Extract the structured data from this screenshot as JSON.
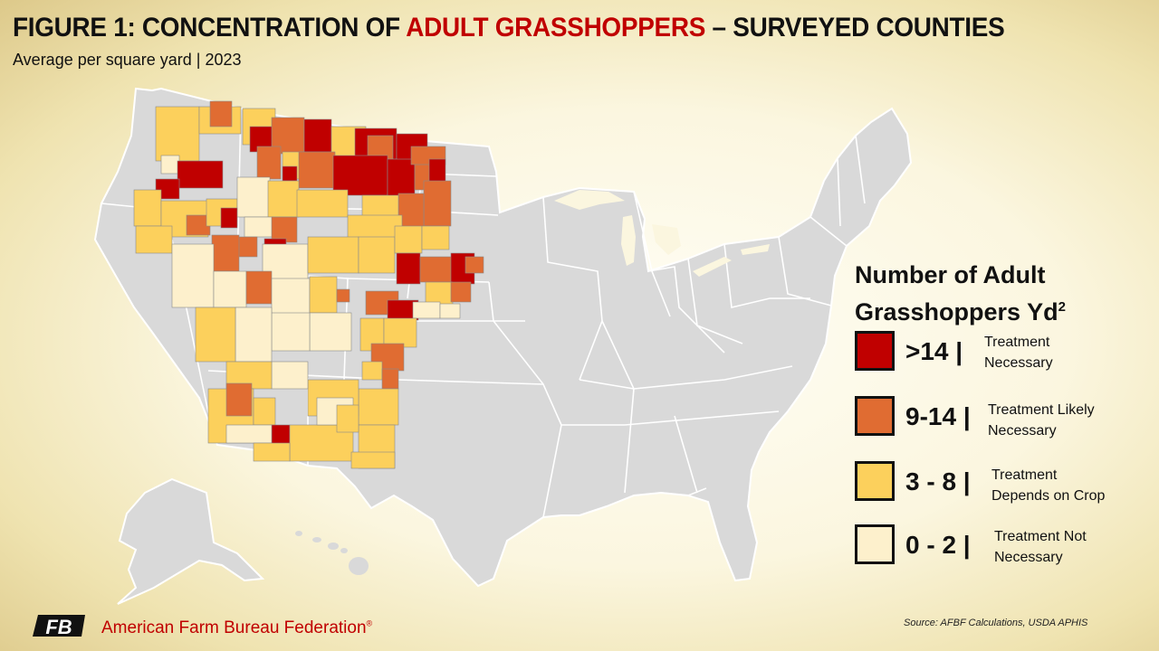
{
  "header": {
    "title_prefix": "FIGURE 1: CONCENTRATION OF ",
    "title_highlight": "ADULT GRASSHOPPERS",
    "title_suffix": " – SURVEYED COUNTIES",
    "subtitle": "Average per square yard | 2023"
  },
  "legend": {
    "title_line1": "Number of Adult",
    "title_line2": "Grasshoppers Yd",
    "title_sup": "2",
    "items": [
      {
        "range": ">14 |",
        "desc_line1": "Treatment",
        "desc_line2": "Necessary",
        "color": "#c00000"
      },
      {
        "range": "9-14 |",
        "desc_line1": "Treatment Likely",
        "desc_line2": "Necessary",
        "color": "#e06c32"
      },
      {
        "range": "3 - 8 |",
        "desc_line1": "Treatment",
        "desc_line2": "Depends on Crop",
        "color": "#fcd05c"
      },
      {
        "range": "0 - 2 |",
        "desc_line1": "Treatment Not",
        "desc_line2": "Necessary",
        "color": "#fdf0cc"
      }
    ]
  },
  "map": {
    "base_color": "#d9d9d9",
    "state_line_color": "#ffffff",
    "county_line_color": "#8a8a8a"
  },
  "footer": {
    "logo_text": "FB",
    "organization": "American Farm Bureau Federation",
    "registered_mark": "®",
    "source": "Source:  AFBF Calculations,  USDA APHIS"
  }
}
